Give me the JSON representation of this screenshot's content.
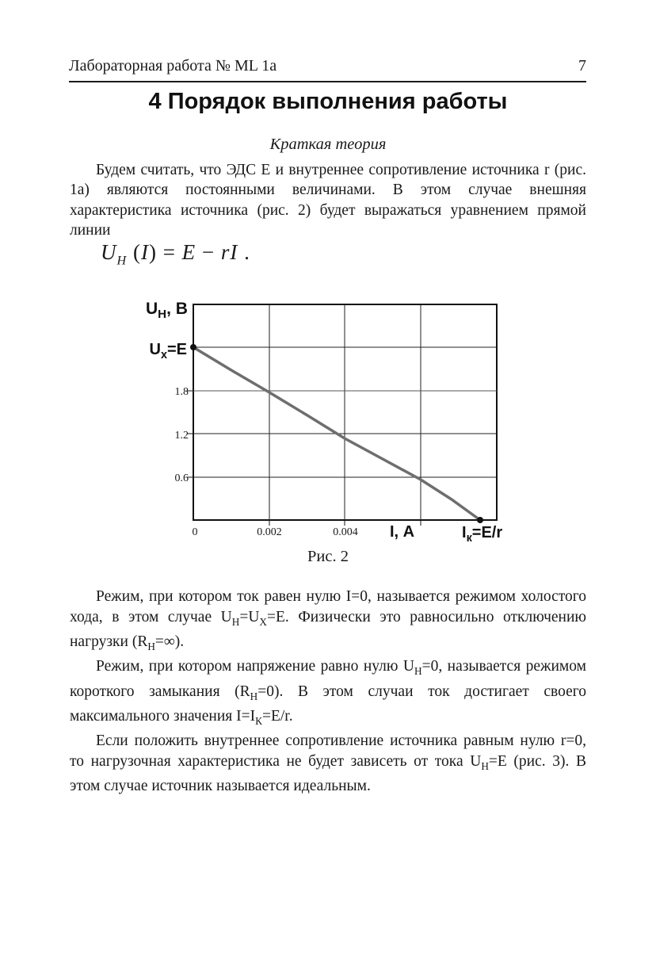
{
  "header": {
    "title": "Лабораторная работа № ML 1a",
    "page_number": "7"
  },
  "section_title": "4 Порядок выполнения работы",
  "subtitle": "Краткая теория",
  "intro_paragraph": "Будем считать, что ЭДС Е и внутреннее сопротивление источника r (рис. 1а) являются постоянными величинами. В этом случае внешняя характеристика источника (рис. 2) будет выражаться уравнением прямой линии",
  "formula": {
    "segments": [
      {
        "t": "U",
        "i": true
      },
      {
        "t": "H",
        "sub": true,
        "i": true
      },
      {
        "t": " ("
      },
      {
        "t": "I",
        "i": true
      },
      {
        "t": ") = "
      },
      {
        "t": "E",
        "i": true
      },
      {
        "t": " − "
      },
      {
        "t": "rI",
        "i": true
      },
      {
        "t": " ."
      }
    ]
  },
  "chart_data": {
    "type": "line",
    "title": "Рис. 2",
    "xlabel": "I, А",
    "ylabel": "UH, В",
    "ylabel_segments": [
      {
        "t": "U"
      },
      {
        "t": "H",
        "sub": true
      },
      {
        "t": ", В"
      }
    ],
    "xlim": [
      0,
      0.008
    ],
    "ylim": [
      0,
      3.0
    ],
    "grid": true,
    "x_tick_labels": [
      "0",
      "0.002",
      "0.004"
    ],
    "y_tick_labels": [
      "1.8",
      "1.2",
      "0.6"
    ],
    "y_tick_values": [
      1.8,
      1.2,
      0.6
    ],
    "series": [
      {
        "x": [
          0,
          0.0076
        ],
        "y": [
          2.4,
          0
        ]
      }
    ],
    "annotations": [
      {
        "text": "Uх=E",
        "segments": [
          {
            "t": "U"
          },
          {
            "t": "х",
            "sub": true
          },
          {
            "t": "=E"
          }
        ],
        "x": 0,
        "y": 2.4
      },
      {
        "text": "Iк=E/r",
        "segments": [
          {
            "t": "I"
          },
          {
            "t": "к",
            "sub": true
          },
          {
            "t": "=E/r"
          }
        ],
        "x": 0.0076,
        "y": 0
      }
    ],
    "line_color": "#6e6e6e",
    "axis_color": "#111111"
  },
  "paragraphs": [
    {
      "segments": [
        {
          "t": "Режим, при котором ток равен нулю I=0, называется режимом холостого хода, в этом случае U"
        },
        {
          "t": "Н",
          "sub": true
        },
        {
          "t": "=U"
        },
        {
          "t": "Х",
          "sub": true
        },
        {
          "t": "=E. Физически это равносильно отключению нагрузки (R"
        },
        {
          "t": "Н",
          "sub": true
        },
        {
          "t": "=∞)."
        }
      ]
    },
    {
      "segments": [
        {
          "t": "Режим, при котором напряжение равно нулю U"
        },
        {
          "t": "Н",
          "sub": true
        },
        {
          "t": "=0, называется режимом короткого замыкания (R"
        },
        {
          "t": "Н",
          "sub": true
        },
        {
          "t": "=0). В этом случаи ток достигает своего максимального значения I=I"
        },
        {
          "t": "К",
          "sub": true
        },
        {
          "t": "=E/r."
        }
      ]
    },
    {
      "segments": [
        {
          "t": "Если положить внутреннее сопротивление источника равным нулю r=0, то нагрузочная характеристика не будет зависеть от тока U"
        },
        {
          "t": "Н",
          "sub": true
        },
        {
          "t": "=E (рис. 3). В этом случае источник называется идеальным."
        }
      ]
    }
  ]
}
